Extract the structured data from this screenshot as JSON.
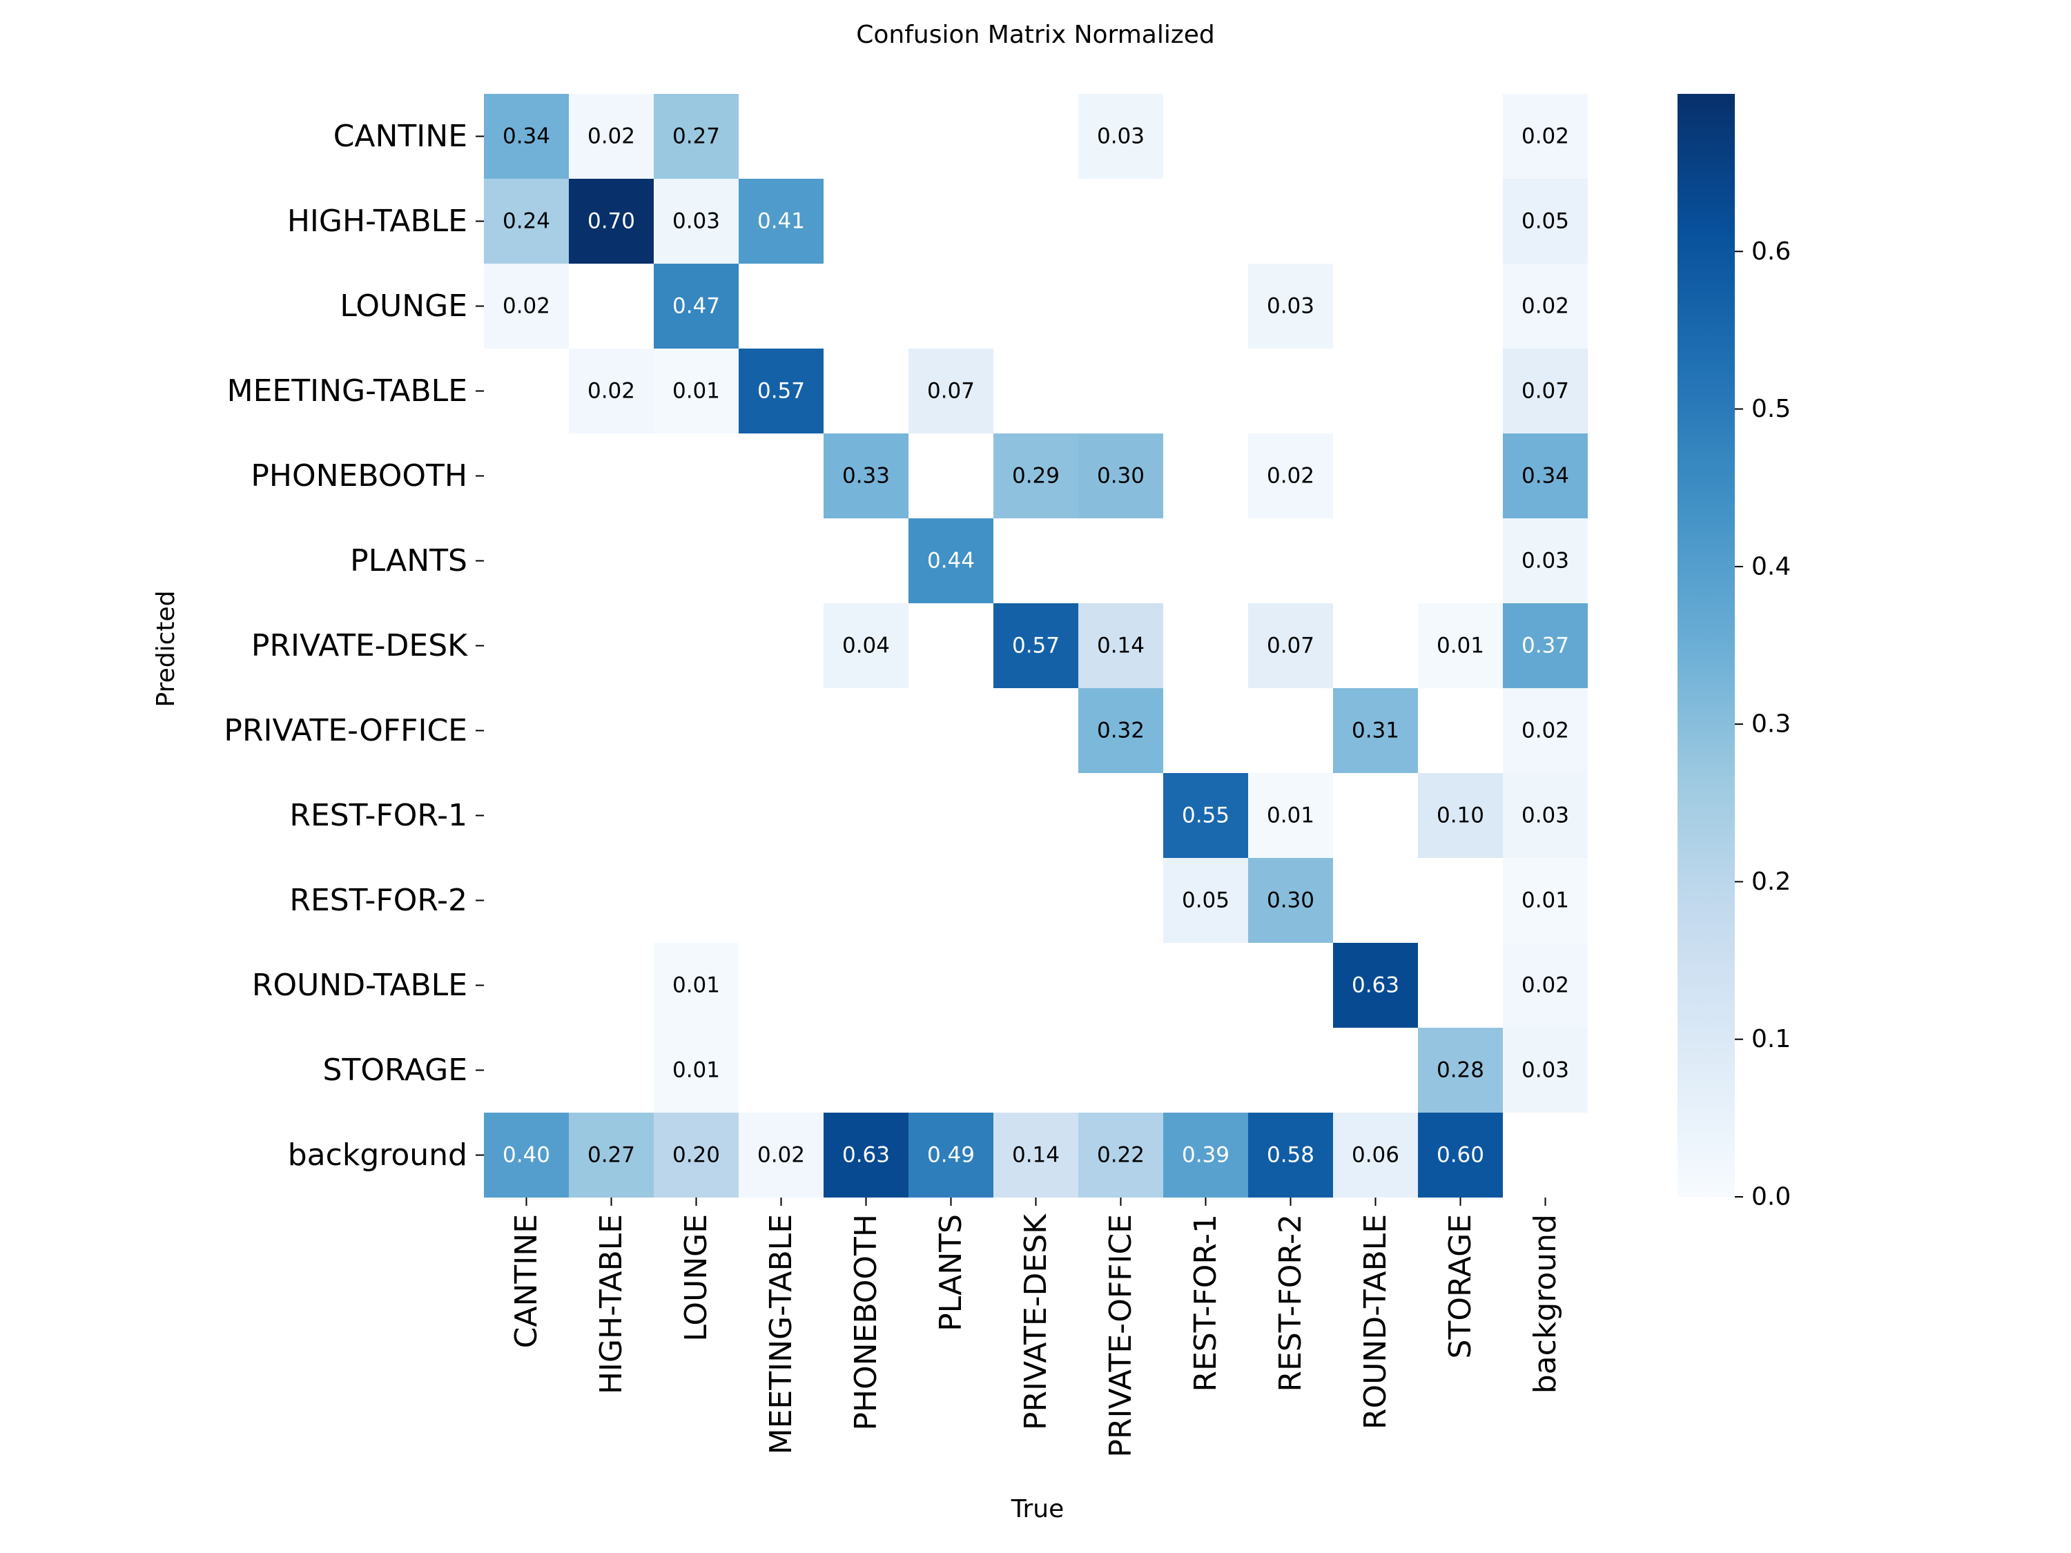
{
  "chart_data": {
    "type": "heatmap",
    "title": "Confusion Matrix Normalized",
    "xlabel": "True",
    "ylabel": "Predicted",
    "row_labels": [
      "CANTINE",
      "HIGH-TABLE",
      "LOUNGE",
      "MEETING-TABLE",
      "PHONEBOOTH",
      "PLANTS",
      "PRIVATE-DESK",
      "PRIVATE-OFFICE",
      "REST-FOR-1",
      "REST-FOR-2",
      "ROUND-TABLE",
      "STORAGE",
      "background"
    ],
    "col_labels": [
      "CANTINE",
      "HIGH-TABLE",
      "LOUNGE",
      "MEETING-TABLE",
      "PHONEBOOTH",
      "PLANTS",
      "PRIVATE-DESK",
      "PRIVATE-OFFICE",
      "REST-FOR-1",
      "REST-FOR-2",
      "ROUND-TABLE",
      "STORAGE",
      "background"
    ],
    "values": [
      [
        0.34,
        0.02,
        0.27,
        null,
        null,
        null,
        null,
        0.03,
        null,
        null,
        null,
        null,
        0.02
      ],
      [
        0.24,
        0.7,
        0.03,
        0.41,
        null,
        null,
        null,
        null,
        null,
        null,
        null,
        null,
        0.05
      ],
      [
        0.02,
        null,
        0.47,
        null,
        null,
        null,
        null,
        null,
        null,
        0.03,
        null,
        null,
        0.02
      ],
      [
        null,
        0.02,
        0.01,
        0.57,
        null,
        0.07,
        null,
        null,
        null,
        null,
        null,
        null,
        0.07
      ],
      [
        null,
        null,
        null,
        null,
        0.33,
        null,
        0.29,
        0.3,
        null,
        0.02,
        null,
        null,
        0.34
      ],
      [
        null,
        null,
        null,
        null,
        null,
        0.44,
        null,
        null,
        null,
        null,
        null,
        null,
        0.03
      ],
      [
        null,
        null,
        null,
        null,
        0.04,
        null,
        0.57,
        0.14,
        null,
        0.07,
        null,
        0.01,
        0.37
      ],
      [
        null,
        null,
        null,
        null,
        null,
        null,
        null,
        0.32,
        null,
        null,
        0.31,
        null,
        0.02
      ],
      [
        null,
        null,
        null,
        null,
        null,
        null,
        null,
        null,
        0.55,
        0.01,
        null,
        0.1,
        0.03
      ],
      [
        null,
        null,
        null,
        null,
        null,
        null,
        null,
        null,
        0.05,
        0.3,
        null,
        null,
        0.01
      ],
      [
        null,
        null,
        0.01,
        null,
        null,
        null,
        null,
        null,
        null,
        null,
        0.63,
        null,
        0.02
      ],
      [
        null,
        null,
        0.01,
        null,
        null,
        null,
        null,
        null,
        null,
        null,
        null,
        0.28,
        0.03
      ],
      [
        0.4,
        0.27,
        0.2,
        0.02,
        0.63,
        0.49,
        0.14,
        0.22,
        0.39,
        0.58,
        0.06,
        0.6,
        null
      ]
    ],
    "colorbar": {
      "colormap": "Blues",
      "range": [
        0,
        0.7
      ],
      "ticks": [
        0.0,
        0.1,
        0.2,
        0.3,
        0.4,
        0.5,
        0.6
      ],
      "tick_labels": [
        "0.0",
        "0.1",
        "0.2",
        "0.3",
        "0.4",
        "0.5",
        "0.6"
      ]
    }
  }
}
